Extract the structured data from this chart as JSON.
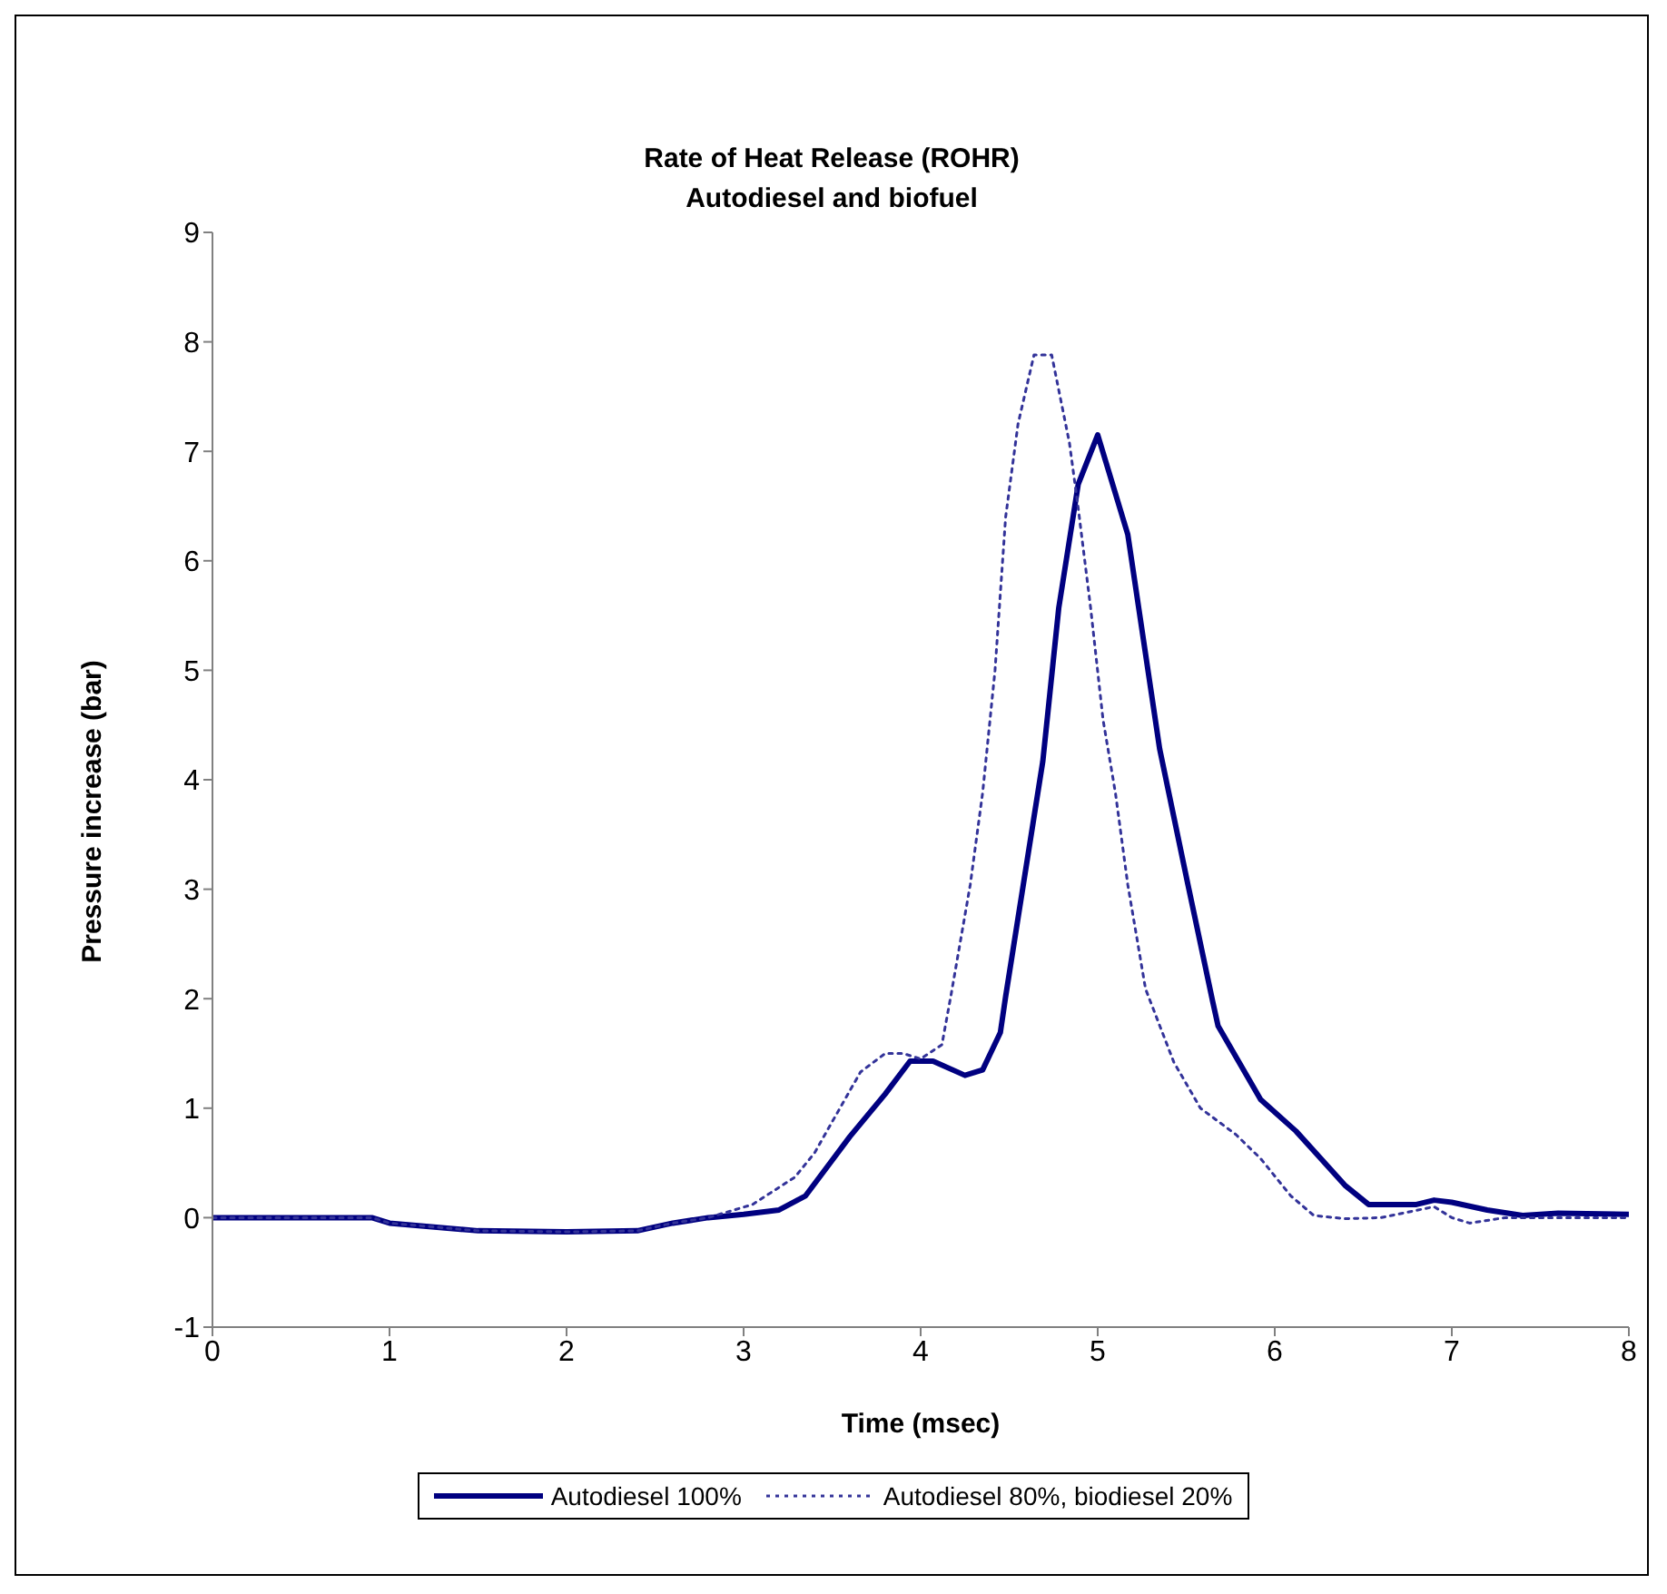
{
  "chart_data": {
    "type": "line",
    "title": "Rate of Heat Release (ROHR)",
    "subtitle": "Autodiesel and biofuel",
    "xlabel": "Time (msec)",
    "ylabel": "Pressure increase (bar)",
    "xlim": [
      0,
      8
    ],
    "xticks": [
      0,
      1,
      2,
      3,
      4,
      5,
      6,
      7,
      8
    ],
    "ylim": [
      -1,
      9
    ],
    "yticks": [
      -1,
      0,
      1,
      2,
      3,
      4,
      5,
      6,
      7,
      8,
      9
    ],
    "grid": false,
    "legend": "bottom",
    "marker": "none",
    "series": [
      {
        "name": "Autodiesel 100%",
        "color": "#000080",
        "line_style": "solid",
        "x": [
          0,
          0.9,
          1.0,
          1.5,
          2.0,
          2.4,
          2.6,
          2.8,
          3.0,
          3.2,
          3.35,
          3.6,
          3.8,
          3.94,
          4.07,
          4.25,
          4.35,
          4.45,
          4.48,
          4.69,
          4.78,
          4.89,
          5.0,
          5.17,
          5.35,
          5.51,
          5.65,
          5.68,
          5.92,
          6.12,
          6.4,
          6.53,
          6.8,
          6.9,
          7.0,
          7.2,
          7.4,
          7.6,
          8.0
        ],
        "values": [
          0,
          0,
          -0.05,
          -0.12,
          -0.13,
          -0.12,
          -0.05,
          0,
          0.03,
          0.07,
          0.2,
          0.74,
          1.13,
          1.43,
          1.43,
          1.3,
          1.35,
          1.69,
          2.02,
          4.17,
          5.57,
          6.7,
          7.15,
          6.24,
          4.28,
          3.04,
          1.97,
          1.75,
          1.08,
          0.79,
          0.29,
          0.12,
          0.12,
          0.16,
          0.14,
          0.07,
          0.02,
          0.04,
          0.03
        ]
      },
      {
        "name": "Autodiesel 80%, biodiesel 20%",
        "color": "#333399",
        "line_style": "dotted",
        "x": [
          0,
          0.9,
          1.0,
          1.5,
          2.0,
          2.4,
          2.6,
          2.8,
          3.05,
          3.29,
          3.4,
          3.53,
          3.66,
          3.8,
          3.9,
          4.0,
          4.12,
          4.17,
          4.28,
          4.35,
          4.42,
          4.48,
          4.55,
          4.64,
          4.74,
          4.84,
          4.89,
          4.96,
          5.03,
          5.1,
          5.17,
          5.27,
          5.43,
          5.58,
          5.78,
          5.92,
          6.09,
          6.22,
          6.4,
          6.6,
          6.9,
          7.0,
          7.1,
          7.3,
          8.0
        ],
        "values": [
          0,
          0,
          -0.05,
          -0.12,
          -0.13,
          -0.12,
          -0.05,
          0,
          0.12,
          0.37,
          0.59,
          0.96,
          1.33,
          1.5,
          1.5,
          1.45,
          1.58,
          2.02,
          3.04,
          3.88,
          5.0,
          6.4,
          7.25,
          7.88,
          7.88,
          7.08,
          6.48,
          5.57,
          4.55,
          3.88,
          3.04,
          2.09,
          1.42,
          1.0,
          0.76,
          0.54,
          0.2,
          0.02,
          -0.01,
          0,
          0.1,
          0,
          -0.05,
          0,
          0
        ]
      }
    ]
  }
}
